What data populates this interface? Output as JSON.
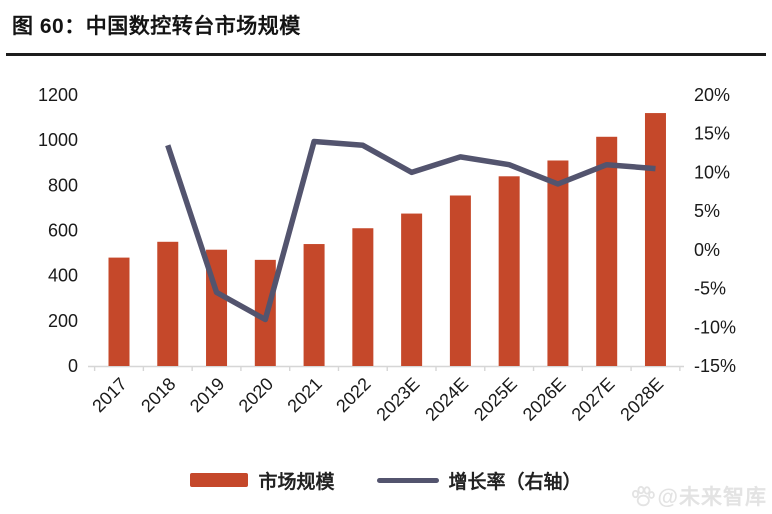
{
  "header": {
    "title": "图 60：中国数控转台市场规模"
  },
  "legend": {
    "items": [
      {
        "label": "市场规模",
        "type": "bar"
      },
      {
        "label": "增长率（右轴）",
        "type": "line"
      }
    ]
  },
  "watermark": {
    "icon": "paw-icon",
    "text": "@未来智库"
  },
  "colors": {
    "bar": "#C5482A",
    "line": "#53546E",
    "axis_text": "#1A1A1A",
    "baseline": "#D6D6D6",
    "title_rule": "#1C1C1C",
    "watermark": "#E3E3E3"
  },
  "chart_data": {
    "type": "bar",
    "title": "图 60：中国数控转台市场规模",
    "categories": [
      "2017",
      "2018",
      "2019",
      "2020",
      "2021",
      "2022",
      "2023E",
      "2024E",
      "2025E",
      "2026E",
      "2027E",
      "2028E"
    ],
    "series": [
      {
        "name": "市场规模",
        "type": "bar",
        "axis": "left",
        "color": "#C5482A",
        "values": [
          480,
          550,
          515,
          470,
          540,
          610,
          675,
          755,
          840,
          910,
          1015,
          1120
        ]
      },
      {
        "name": "增长率（右轴）",
        "type": "line",
        "axis": "right",
        "color": "#53546E",
        "values": [
          null,
          13.5,
          -5.5,
          -9,
          14,
          13.5,
          10,
          12,
          11,
          8.5,
          11,
          10.5
        ]
      }
    ],
    "left_axis": {
      "ticks": [
        "1200",
        "1000",
        "800",
        "600",
        "400",
        "200",
        "0"
      ],
      "min": 0,
      "max": 1200
    },
    "right_axis": {
      "ticks": [
        "20%",
        "15%",
        "10%",
        "5%",
        "0%",
        "-5%",
        "-10%",
        "-15%"
      ],
      "min": -15,
      "max": 20
    },
    "grid": false,
    "legend_position": "bottom",
    "xlabel": "",
    "ylabel": ""
  }
}
